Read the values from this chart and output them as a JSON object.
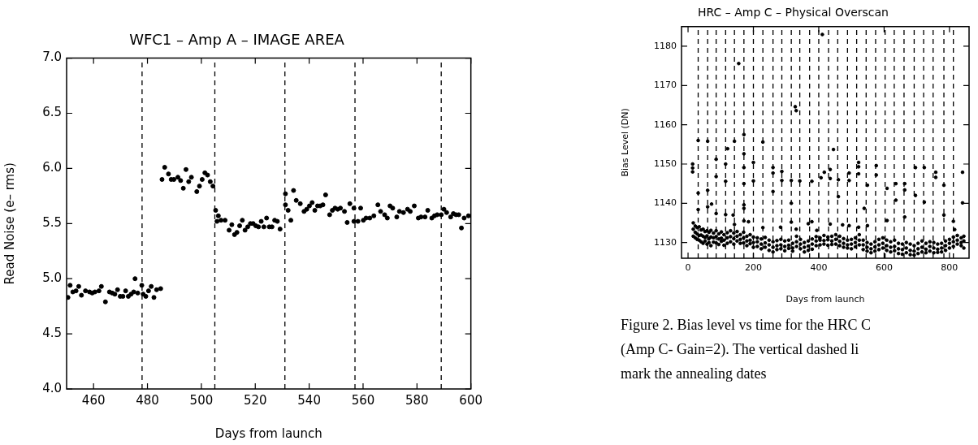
{
  "chart_data": [
    {
      "type": "scatter",
      "title": "WFC1 – Amp A – IMAGE AREA",
      "xlabel": "Days from launch",
      "ylabel": "Read Noise (e– rms)",
      "xlim": [
        450,
        600
      ],
      "xticks": [
        460,
        480,
        500,
        520,
        540,
        560,
        580,
        600
      ],
      "ylim": [
        4,
        7
      ],
      "yticks": [
        {
          "value": 4,
          "label": "4.0"
        },
        4.5,
        {
          "value": 5,
          "label": "5.0"
        },
        5.5,
        {
          "value": 6,
          "label": "6.0"
        },
        6.5,
        {
          "value": 7,
          "label": "7.0"
        }
      ],
      "grid": false,
      "marker": "circle",
      "ref_lines": [
        {
          "axis": "x",
          "value": 478,
          "color": "#000000",
          "line_style": "dashed"
        },
        {
          "axis": "x",
          "value": 505,
          "color": "#000000",
          "line_style": "dashed"
        },
        {
          "axis": "x",
          "value": 531,
          "color": "#000000",
          "line_style": "dashed"
        },
        {
          "axis": "x",
          "value": 557,
          "color": "#000000",
          "line_style": "dashed"
        },
        {
          "axis": "x",
          "value": 589,
          "color": "#000000",
          "line_style": "dashed"
        }
      ],
      "series": [
        {
          "color": "#000000",
          "x": [
            450.5,
            451.3,
            452.3,
            453.5,
            454.5,
            455.5,
            457.0,
            458.5,
            459.5,
            460.5,
            462.0,
            462.9,
            464.4,
            465.9,
            466.9,
            467.9,
            468.9,
            469.9,
            470.9,
            471.9,
            472.9,
            473.9,
            474.9,
            475.4,
            476.4,
            477.9,
            478.4,
            479.4,
            480.4,
            481.4,
            482.4,
            483.4,
            484.9,
            485.4,
            486.4,
            487.8,
            488.8,
            489.8,
            491.3,
            492.3,
            493.3,
            494.3,
            495.3,
            496.3,
            498.3,
            499.3,
            500.3,
            501.3,
            502.3,
            503.3,
            504.3,
            505.3,
            505.8,
            506.3,
            507.3,
            508.8,
            510.3,
            511.3,
            512.3,
            513.2,
            514.2,
            515.2,
            516.2,
            517.2,
            518.2,
            519.2,
            520.2,
            521.2,
            522.2,
            523.2,
            524.2,
            525.2,
            526.2,
            527.2,
            528.2,
            529.2,
            531.2,
            531.2,
            532.2,
            533.2,
            534.2,
            535.2,
            536.7,
            538.1,
            539.1,
            540.1,
            541.1,
            542.1,
            543.1,
            544.1,
            545.1,
            546.1,
            547.6,
            548.6,
            549.6,
            550.6,
            551.6,
            553.1,
            554.1,
            555.1,
            556.6,
            556.6,
            558.1,
            559.1,
            560.1,
            561.1,
            562.5,
            564.0,
            565.5,
            566.5,
            568.0,
            569.0,
            570.0,
            571.0,
            572.5,
            573.5,
            575.0,
            576.5,
            577.5,
            579.0,
            580.5,
            581.5,
            583.0,
            584.0,
            585.5,
            586.5,
            587.5,
            589.0,
            590.0,
            591.0,
            592.5,
            593.5,
            594.5,
            595.5,
            596.5,
            597.5,
            599.1
          ],
          "values": [
            4.83,
            4.94,
            4.88,
            4.89,
            4.93,
            4.85,
            4.89,
            4.88,
            4.87,
            4.88,
            4.89,
            4.93,
            4.79,
            4.88,
            4.87,
            4.86,
            4.9,
            4.84,
            4.84,
            4.89,
            4.84,
            4.86,
            4.88,
            5.0,
            4.87,
            4.94,
            4.86,
            4.84,
            4.89,
            4.93,
            4.83,
            4.9,
            4.91,
            5.9,
            6.01,
            5.95,
            5.9,
            5.9,
            5.92,
            5.89,
            5.82,
            5.99,
            5.88,
            5.92,
            5.79,
            5.84,
            5.9,
            5.96,
            5.94,
            5.88,
            5.84,
            5.62,
            5.52,
            5.57,
            5.53,
            5.53,
            5.44,
            5.49,
            5.4,
            5.42,
            5.48,
            5.53,
            5.44,
            5.47,
            5.5,
            5.5,
            5.48,
            5.47,
            5.52,
            5.47,
            5.55,
            5.47,
            5.47,
            5.53,
            5.52,
            5.45,
            5.77,
            5.67,
            5.62,
            5.53,
            5.8,
            5.71,
            5.68,
            5.61,
            5.63,
            5.66,
            5.69,
            5.62,
            5.66,
            5.66,
            5.67,
            5.76,
            5.58,
            5.62,
            5.64,
            5.63,
            5.64,
            5.61,
            5.51,
            5.68,
            5.64,
            5.52,
            5.52,
            5.64,
            5.53,
            5.55,
            5.55,
            5.57,
            5.67,
            5.61,
            5.58,
            5.55,
            5.66,
            5.64,
            5.56,
            5.61,
            5.6,
            5.63,
            5.61,
            5.66,
            5.55,
            5.56,
            5.56,
            5.62,
            5.55,
            5.57,
            5.58,
            5.58,
            5.63,
            5.6,
            5.56,
            5.59,
            5.58,
            5.58,
            5.46,
            5.55,
            5.57
          ]
        }
      ]
    },
    {
      "type": "scatter",
      "title": "HRC – Amp C – Physical Overscan",
      "xlabel": "Days from launch",
      "ylabel": "Bias Level (DN)",
      "xlim": [
        -20,
        860
      ],
      "xticks": [
        0,
        200,
        400,
        600,
        800
      ],
      "ylim": [
        1126,
        1185
      ],
      "yticks": [
        1130,
        1140,
        1150,
        1160,
        1170,
        1180
      ],
      "grid": false,
      "marker": "circle",
      "ref_lines": [
        {
          "axis": "x",
          "value": 31,
          "color": "#000000",
          "line_style": "dashed"
        },
        {
          "axis": "x",
          "value": 60,
          "color": "#000000",
          "line_style": "dashed"
        },
        {
          "axis": "x",
          "value": 86,
          "color": "#000000",
          "line_style": "dashed"
        },
        {
          "axis": "x",
          "value": 115,
          "color": "#000000",
          "line_style": "dashed"
        },
        {
          "axis": "x",
          "value": 142,
          "color": "#000000",
          "line_style": "dashed"
        },
        {
          "axis": "x",
          "value": 171,
          "color": "#000000",
          "line_style": "dashed"
        },
        {
          "axis": "x",
          "value": 200,
          "color": "#000000",
          "line_style": "dashed"
        },
        {
          "axis": "x",
          "value": 229,
          "color": "#000000",
          "line_style": "dashed"
        },
        {
          "axis": "x",
          "value": 260,
          "color": "#000000",
          "line_style": "dashed"
        },
        {
          "axis": "x",
          "value": 287,
          "color": "#000000",
          "line_style": "dashed"
        },
        {
          "axis": "x",
          "value": 316,
          "color": "#000000",
          "line_style": "dashed"
        },
        {
          "axis": "x",
          "value": 342,
          "color": "#000000",
          "line_style": "dashed"
        },
        {
          "axis": "x",
          "value": 372,
          "color": "#000000",
          "line_style": "dashed"
        },
        {
          "axis": "x",
          "value": 400,
          "color": "#000000",
          "line_style": "dashed"
        },
        {
          "axis": "x",
          "value": 430,
          "color": "#000000",
          "line_style": "dashed"
        },
        {
          "axis": "x",
          "value": 458,
          "color": "#000000",
          "line_style": "dashed"
        },
        {
          "axis": "x",
          "value": 488,
          "color": "#000000",
          "line_style": "dashed"
        },
        {
          "axis": "x",
          "value": 516,
          "color": "#000000",
          "line_style": "dashed"
        },
        {
          "axis": "x",
          "value": 545,
          "color": "#000000",
          "line_style": "dashed"
        },
        {
          "axis": "x",
          "value": 574,
          "color": "#000000",
          "line_style": "dashed"
        },
        {
          "axis": "x",
          "value": 603,
          "color": "#000000",
          "line_style": "dashed"
        },
        {
          "axis": "x",
          "value": 631,
          "color": "#000000",
          "line_style": "dashed"
        },
        {
          "axis": "x",
          "value": 661,
          "color": "#000000",
          "line_style": "dashed"
        },
        {
          "axis": "x",
          "value": 692,
          "color": "#000000",
          "line_style": "dashed"
        },
        {
          "axis": "x",
          "value": 721,
          "color": "#000000",
          "line_style": "dashed"
        },
        {
          "axis": "x",
          "value": 750,
          "color": "#000000",
          "line_style": "dashed"
        },
        {
          "axis": "x",
          "value": 783,
          "color": "#000000",
          "line_style": "dashed"
        },
        {
          "axis": "x",
          "value": 812,
          "color": "#000000",
          "line_style": "dashed"
        }
      ],
      "annotations": [
        "Figure 2. Bias level vs time for the HRC C",
        "(Amp C- Gain=2).  The vertical dashed li",
        "mark the annealing dates"
      ],
      "series": [
        {
          "color": "#000000",
          "x": [
            16,
            16,
            16,
            22,
            22,
            22,
            28,
            28,
            28,
            34,
            34,
            34,
            40,
            40,
            40,
            46,
            46,
            46,
            52,
            52,
            52,
            58,
            58,
            58,
            64,
            64,
            64,
            70,
            70,
            70,
            78,
            78,
            78,
            86,
            86,
            86,
            94,
            94,
            94,
            102,
            102,
            102,
            110,
            110,
            110,
            120,
            120,
            120,
            130,
            130,
            130,
            140,
            140,
            140,
            150,
            150,
            150,
            160,
            160,
            160,
            170,
            170,
            170,
            180,
            180,
            180,
            190,
            190,
            190,
            200,
            200,
            200,
            212,
            212,
            212,
            224,
            224,
            224,
            236,
            236,
            236,
            248,
            248,
            248,
            260,
            260,
            260,
            272,
            272,
            272,
            284,
            284,
            284,
            296,
            296,
            296,
            308,
            308,
            308,
            320,
            320,
            320,
            332,
            332,
            332,
            344,
            344,
            344,
            356,
            356,
            356,
            368,
            368,
            368,
            380,
            380,
            380,
            392,
            392,
            392,
            404,
            404,
            404,
            416,
            416,
            416,
            428,
            428,
            428,
            440,
            440,
            440,
            452,
            452,
            452,
            464,
            464,
            464,
            476,
            476,
            476,
            488,
            488,
            488,
            500,
            500,
            500,
            512,
            512,
            512,
            524,
            524,
            524,
            536,
            536,
            536,
            548,
            548,
            548,
            560,
            560,
            560,
            572,
            572,
            572,
            584,
            584,
            584,
            596,
            596,
            596,
            608,
            608,
            608,
            620,
            620,
            620,
            632,
            632,
            632,
            644,
            644,
            644,
            656,
            656,
            656,
            668,
            668,
            668,
            680,
            680,
            680,
            692,
            692,
            692,
            704,
            704,
            704,
            716,
            716,
            716,
            728,
            728,
            728,
            740,
            740,
            740,
            752,
            752,
            752,
            764,
            764,
            764,
            776,
            776,
            776,
            788,
            788,
            788,
            800,
            800,
            800,
            812,
            812,
            812,
            824,
            824,
            824,
            836,
            836,
            836,
            844,
            844,
            844,
            14,
            14,
            14,
            31,
            31,
            31,
            60,
            60,
            60,
            72,
            86,
            86,
            86,
            115,
            115,
            115,
            121,
            142,
            138,
            142,
            155,
            171,
            171,
            171,
            171,
            171,
            171,
            171,
            185,
            200,
            200,
            229,
            229,
            260,
            260,
            260,
            287,
            287,
            283,
            316,
            316,
            316,
            328,
            331,
            331,
            342,
            368,
            379,
            379,
            394,
            411,
            407,
            417,
            435,
            435,
            435,
            445,
            460,
            460,
            473,
            493,
            493,
            493,
            522,
            522,
            522,
            522,
            539,
            549,
            549,
            576,
            576,
            609,
            609,
            636,
            636,
            663,
            663,
            663,
            696,
            696,
            723,
            723,
            758,
            758,
            783,
            783,
            812,
            816,
            840,
            840
          ],
          "values": [
            1135.0,
            1133.4,
            1131.6,
            1134.2,
            1132.6,
            1131.2,
            1133.8,
            1132.2,
            1130.8,
            1134.0,
            1131.8,
            1130.6,
            1133.2,
            1131.9,
            1130.2,
            1133.4,
            1131.6,
            1129.8,
            1132.8,
            1131.3,
            1130.4,
            1133.0,
            1131.7,
            1129.6,
            1132.6,
            1131.0,
            1130.0,
            1133.1,
            1131.4,
            1129.2,
            1132.4,
            1131.2,
            1130.1,
            1133.0,
            1131.5,
            1129.9,
            1132.2,
            1130.9,
            1129.5,
            1132.7,
            1131.1,
            1130.3,
            1132.0,
            1130.6,
            1129.3,
            1132.5,
            1131.2,
            1129.8,
            1133.0,
            1131.5,
            1130.2,
            1132.4,
            1131.0,
            1129.6,
            1132.8,
            1131.6,
            1130.4,
            1132.0,
            1130.8,
            1129.8,
            1132.6,
            1131.2,
            1129.9,
            1131.6,
            1130.4,
            1129.2,
            1132.0,
            1130.6,
            1129.7,
            1131.4,
            1130.0,
            1128.8,
            1131.2,
            1130.2,
            1129.0,
            1130.9,
            1129.6,
            1128.4,
            1131.3,
            1129.9,
            1128.8,
            1130.6,
            1129.4,
            1128.0,
            1130.2,
            1128.8,
            1127.6,
            1130.5,
            1129.2,
            1128.2,
            1130.8,
            1129.4,
            1128.4,
            1130.4,
            1129.0,
            1127.9,
            1130.6,
            1129.3,
            1128.5,
            1129.8,
            1128.6,
            1127.8,
            1131.6,
            1130.2,
            1129.0,
            1130.8,
            1129.6,
            1128.4,
            1130.0,
            1128.8,
            1127.6,
            1130.4,
            1129.1,
            1128.0,
            1130.9,
            1129.6,
            1128.3,
            1131.5,
            1130.4,
            1129.2,
            1131.2,
            1130.6,
            1129.4,
            1131.8,
            1130.5,
            1129.6,
            1131.4,
            1130.7,
            1129.3,
            1131.6,
            1130.4,
            1129.5,
            1132.0,
            1130.8,
            1129.6,
            1131.6,
            1130.3,
            1129.2,
            1131.0,
            1129.8,
            1128.8,
            1130.6,
            1129.4,
            1128.6,
            1130.8,
            1129.6,
            1128.4,
            1131.2,
            1130.0,
            1128.9,
            1132.0,
            1130.6,
            1129.4,
            1130.6,
            1129.4,
            1128.2,
            1130.0,
            1128.8,
            1127.8,
            1129.6,
            1128.4,
            1127.4,
            1130.2,
            1128.9,
            1127.8,
            1130.8,
            1129.4,
            1128.2,
            1131.2,
            1129.8,
            1128.6,
            1130.6,
            1129.2,
            1128.0,
            1130.2,
            1128.8,
            1127.6,
            1130.6,
            1129.0,
            1127.9,
            1129.8,
            1128.4,
            1127.2,
            1129.6,
            1128.2,
            1127.0,
            1130.0,
            1128.6,
            1127.4,
            1129.6,
            1128.0,
            1126.9,
            1129.2,
            1127.8,
            1126.8,
            1129.8,
            1128.4,
            1127.2,
            1130.4,
            1128.8,
            1127.6,
            1129.8,
            1128.3,
            1127.4,
            1130.2,
            1129.0,
            1127.8,
            1130.0,
            1128.6,
            1127.4,
            1129.6,
            1128.3,
            1127.5,
            1129.8,
            1128.6,
            1127.6,
            1130.4,
            1129.2,
            1128.0,
            1130.8,
            1129.8,
            1128.6,
            1131.4,
            1130.2,
            1129.0,
            1131.8,
            1130.6,
            1129.6,
            1131.2,
            1130.0,
            1129.2,
            1131.6,
            1130.4,
            1128.6,
            1150.0,
            1149.0,
            1148.0,
            1156.0,
            1142.6,
            1138.4,
            1155.8,
            1143.3,
            1139.1,
            1139.8,
            1151.2,
            1146.8,
            1137.4,
            1150.0,
            1145.6,
            1137.1,
            1153.9,
            1155.8,
            1137.0,
            1134.6,
            1175.6,
            1157.5,
            1152.6,
            1149.1,
            1145.0,
            1138.7,
            1139.6,
            1135.5,
            1135.3,
            1150.4,
            1145.7,
            1155.6,
            1133.8,
            1149.1,
            1147.7,
            1143.0,
            1148.1,
            1145.8,
            1133.9,
            1145.8,
            1140.0,
            1135.2,
            1164.6,
            1163.6,
            1133.4,
            1145.7,
            1134.8,
            1145.6,
            1135.3,
            1133.1,
            1183.0,
            1146.5,
            1147.9,
            1148.6,
            1146.3,
            1134.7,
            1153.7,
            1146.0,
            1141.7,
            1134.5,
            1147.7,
            1145.8,
            1134.3,
            1150.4,
            1149.3,
            1147.5,
            1133.9,
            1138.7,
            1144.6,
            1134.3,
            1149.6,
            1147.2,
            1143.8,
            1135.6,
            1145.0,
            1140.8,
            1145.0,
            1143.4,
            1136.5,
            1149.1,
            1142.0,
            1149.1,
            1140.3,
            1147.9,
            1146.6,
            1144.6,
            1137.0,
            1135.4,
            1133.3,
            1147.9,
            1140.1
          ]
        }
      ]
    }
  ]
}
